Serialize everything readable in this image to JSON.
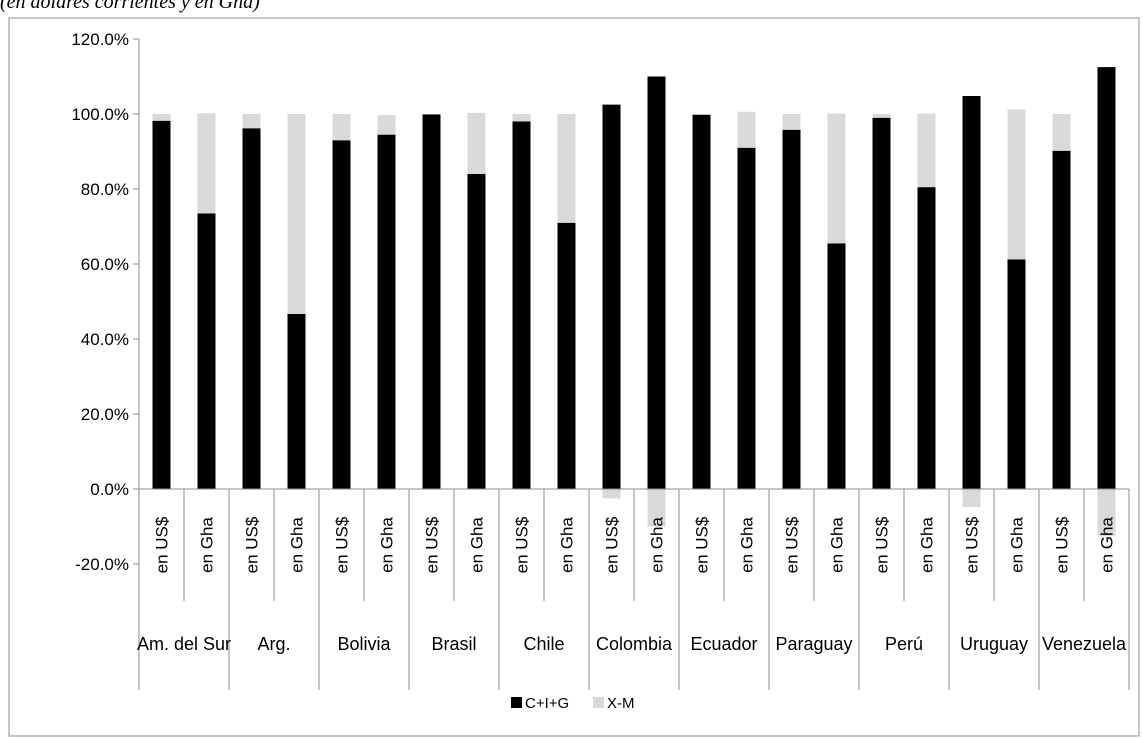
{
  "subtitle": "(en dólares corrientes y en Gha)",
  "chart_data": {
    "type": "bar",
    "stacked": true,
    "categories": [
      "en US$",
      "en Gha",
      "en US$",
      "en Gha",
      "en US$",
      "en Gha",
      "en US$",
      "en Gha",
      "en US$",
      "en Gha",
      "en US$",
      "en Gha",
      "en US$",
      "en Gha",
      "en US$",
      "en Gha",
      "en US$",
      "en Gha",
      "en US$",
      "en Gha",
      "en US$",
      "en Gha"
    ],
    "groups": [
      "Am. del Sur",
      "Arg.",
      "Bolivia",
      "Brasil",
      "Chile",
      "Colombia",
      "Ecuador",
      "Paraguay",
      "Perú",
      "Uruguay",
      "Venezuela"
    ],
    "series": [
      {
        "name": "C+I+G",
        "color": "#000000",
        "values": [
          98.2,
          73.5,
          96.2,
          46.7,
          93.0,
          94.5,
          99.9,
          84.0,
          98.0,
          71.0,
          102.5,
          110.0,
          99.8,
          91.0,
          95.8,
          65.5,
          99.0,
          80.5,
          104.8,
          61.2,
          90.2,
          112.5
        ]
      },
      {
        "name": "X-M",
        "color": "#d9d9d9",
        "values": [
          1.8,
          26.7,
          3.8,
          53.3,
          7.0,
          5.2,
          0.1,
          16.3,
          2.0,
          29.0,
          -2.5,
          -10.0,
          0.2,
          9.6,
          4.2,
          34.6,
          1.0,
          19.6,
          -4.8,
          40.0,
          9.8,
          -12.5
        ]
      }
    ],
    "ylim": [
      -20,
      120
    ],
    "yticks": [
      "-20.0%",
      "0.0%",
      "20.0%",
      "40.0%",
      "60.0%",
      "80.0%",
      "100.0%",
      "120.0%"
    ],
    "grid": false,
    "legend_position": "bottom"
  }
}
